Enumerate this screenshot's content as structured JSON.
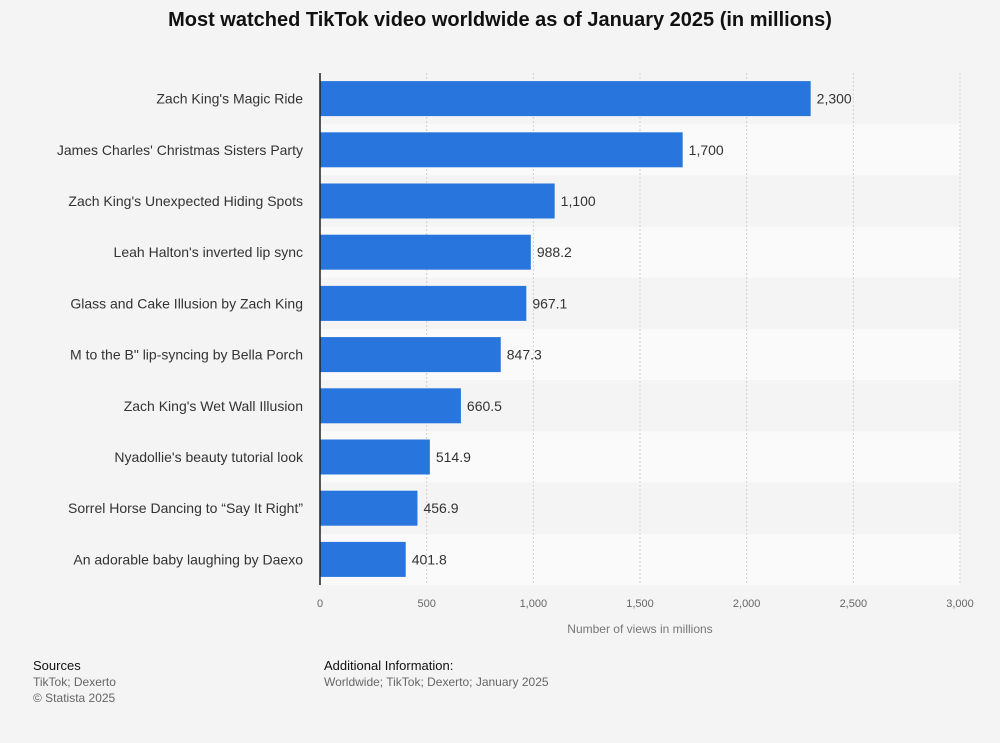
{
  "chart_data": {
    "type": "bar",
    "orientation": "horizontal",
    "title": "Most watched TikTok video worldwide as of January 2025 (in millions)",
    "categories": [
      "Zach King's Magic Ride",
      "James Charles' Christmas Sisters Party",
      "Zach King's Unexpected Hiding Spots",
      "Leah Halton's inverted lip sync",
      "Glass and Cake Illusion by Zach King",
      "M to the B\" lip-syncing by Bella Porch",
      "Zach King's Wet Wall Illusion",
      "Nyadollie's beauty tutorial look",
      "Sorrel Horse Dancing to “Say It Right”",
      "An adorable baby laughing by Daexo"
    ],
    "values": [
      2300,
      1700,
      1100,
      988.2,
      967.1,
      847.3,
      660.5,
      514.9,
      456.9,
      401.8
    ],
    "value_labels": [
      "2,300",
      "1,700",
      "1,100",
      "988.2",
      "967.1",
      "847.3",
      "660.5",
      "514.9",
      "456.9",
      "401.8"
    ],
    "xlabel": "Number of views in millions",
    "ylabel": "",
    "xlim": [
      0,
      3000
    ],
    "ticks": [
      0,
      500,
      1000,
      1500,
      2000,
      2500,
      3000
    ],
    "tick_labels": [
      "0",
      "500",
      "1,000",
      "1,500",
      "2,000",
      "2,500",
      "3,000"
    ],
    "grid": true,
    "bar_color": "#2876dd"
  },
  "sources": {
    "heading": "Sources",
    "lines": [
      "TikTok; Dexerto",
      "© Statista 2025"
    ]
  },
  "additional": {
    "heading": "Additional Information:",
    "text": "Worldwide; TikTok; Dexerto; January 2025"
  }
}
